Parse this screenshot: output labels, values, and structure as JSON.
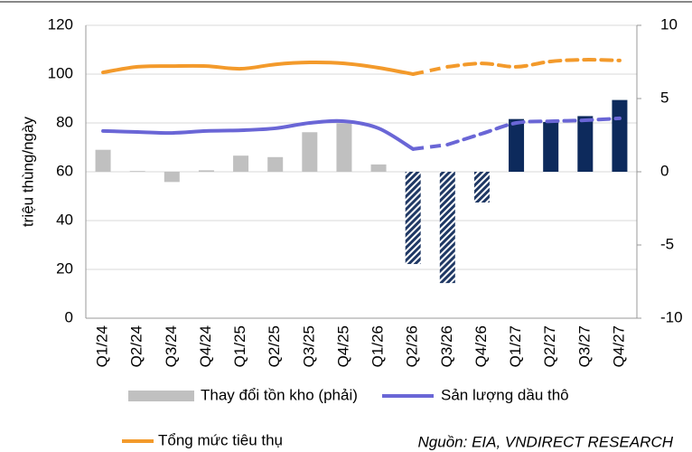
{
  "chart_data": {
    "type": "bar-line",
    "y_label": "triệu thùng/ngày",
    "source": "Nguồn: EIA, VNDIRECT RESEARCH",
    "categories": [
      "Q1/24",
      "Q2/24",
      "Q3/24",
      "Q4/24",
      "Q1/25",
      "Q2/25",
      "Q3/25",
      "Q4/25",
      "Q1/26",
      "Q2/26",
      "Q3/26",
      "Q4/26",
      "Q1/27",
      "Q2/27",
      "Q3/27",
      "Q4/27"
    ],
    "ylim": [
      0,
      120
    ],
    "yticks": [
      0,
      20,
      40,
      60,
      80,
      100,
      120
    ],
    "y2lim": [
      -10,
      10
    ],
    "y2ticks": [
      -10,
      -5,
      0,
      5,
      10
    ],
    "grid": true,
    "series": [
      {
        "name": "Thay đổi tồn kho (phải)",
        "kind": "bar",
        "axis": "y2",
        "color": "#c0c0c0",
        "colors": [
          "#c0c0c0",
          "#c0c0c0",
          "#c0c0c0",
          "#c0c0c0",
          "#c0c0c0",
          "#c0c0c0",
          "#c0c0c0",
          "#c0c0c0",
          "#c0c0c0",
          "#1f3864",
          "#1f3864",
          "#1f3864",
          "#0d2a5c",
          "#0d2a5c",
          "#0d2a5c",
          "#0d2a5c"
        ],
        "hatched": [
          false,
          false,
          false,
          false,
          false,
          false,
          false,
          false,
          false,
          true,
          true,
          true,
          false,
          false,
          false,
          false
        ],
        "values": [
          1.5,
          0.05,
          -0.7,
          0.1,
          1.1,
          1.0,
          2.7,
          3.3,
          0.5,
          -6.3,
          -7.6,
          -2.1,
          3.6,
          3.4,
          3.8,
          4.9
        ]
      },
      {
        "name": "Sản lượng dầu thô",
        "kind": "line",
        "color": "#6a66d6",
        "dash_from": 10,
        "values": [
          76.7,
          76.3,
          75.9,
          76.7,
          77.0,
          77.8,
          80.0,
          80.7,
          77.8,
          69.3,
          71.1,
          75.6,
          80.0,
          80.7,
          81.1,
          81.9
        ]
      },
      {
        "name": "Tổng mức tiêu thụ",
        "kind": "line",
        "color": "#f39a2b",
        "dash_from": 10,
        "values": [
          100.7,
          103.0,
          103.3,
          103.3,
          102.2,
          104.0,
          104.8,
          104.4,
          102.6,
          100.0,
          103.0,
          104.4,
          103.0,
          105.2,
          105.9,
          105.6
        ]
      }
    ]
  }
}
